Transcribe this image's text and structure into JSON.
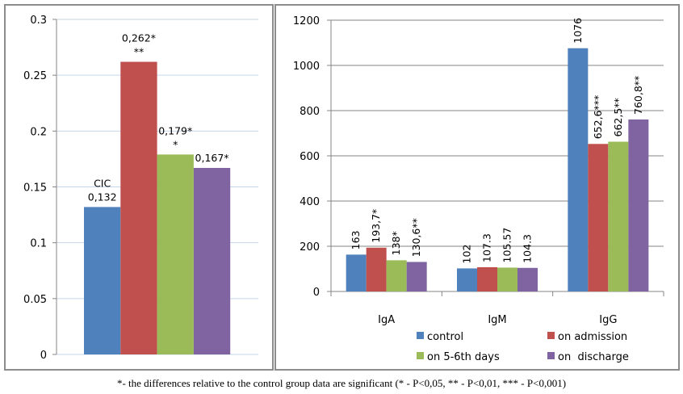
{
  "footnote": "*- the differences relative to the control group data are significant (* - P<0,05, ** - P<0,01, *** - P<0,001)",
  "colors": {
    "control": "#4f81bd",
    "on_admission": "#c0504d",
    "on_5_6th_days": "#9bbb59",
    "on_discharge": "#8064a2",
    "left_grid": "#c6d6ea",
    "right_grid": "#868686",
    "axis": "#868686"
  },
  "chart_data": [
    {
      "type": "bar",
      "title": "",
      "xlabel": "",
      "ylabel": "",
      "ylim": [
        0,
        0.3
      ],
      "yticks": [
        "0",
        "0.05",
        "0.1",
        "0.15",
        "0.2",
        "0.25",
        "0.3"
      ],
      "grid": true,
      "categories": [
        "CIC"
      ],
      "series": [
        {
          "name": "control",
          "values": [
            0.132
          ],
          "labels": [
            "CIC\n0,132"
          ]
        },
        {
          "name": "on admission",
          "values": [
            0.262
          ],
          "labels": [
            "0,262*\n**"
          ]
        },
        {
          "name": "on 5-6th days",
          "values": [
            0.179
          ],
          "labels": [
            "0,179*\n*"
          ]
        },
        {
          "name": "on  discharge",
          "values": [
            0.167
          ],
          "labels": [
            "0,167*"
          ]
        }
      ]
    },
    {
      "type": "bar",
      "title": "",
      "xlabel": "",
      "ylabel": "",
      "ylim": [
        0,
        1200
      ],
      "yticks": [
        "0",
        "200",
        "400",
        "600",
        "800",
        "1000",
        "1200"
      ],
      "grid": true,
      "legend": "bottom",
      "categories": [
        "IgA",
        "IgM",
        "IgG"
      ],
      "series": [
        {
          "name": "control",
          "values": [
            163,
            102,
            1076
          ],
          "labels": [
            "163",
            "102",
            "1076"
          ]
        },
        {
          "name": "on admission",
          "values": [
            193.7,
            107.3,
            652.6
          ],
          "labels": [
            "193,7*",
            "107.3",
            "652,6***"
          ]
        },
        {
          "name": "on 5-6th days",
          "values": [
            138,
            105.57,
            662.5
          ],
          "labels": [
            "138*",
            "105.57",
            "662,5**"
          ]
        },
        {
          "name": "on  discharge",
          "values": [
            130.6,
            104.3,
            760.8
          ],
          "labels": [
            "130,6**",
            "104.3",
            "760,8**"
          ]
        }
      ]
    }
  ]
}
